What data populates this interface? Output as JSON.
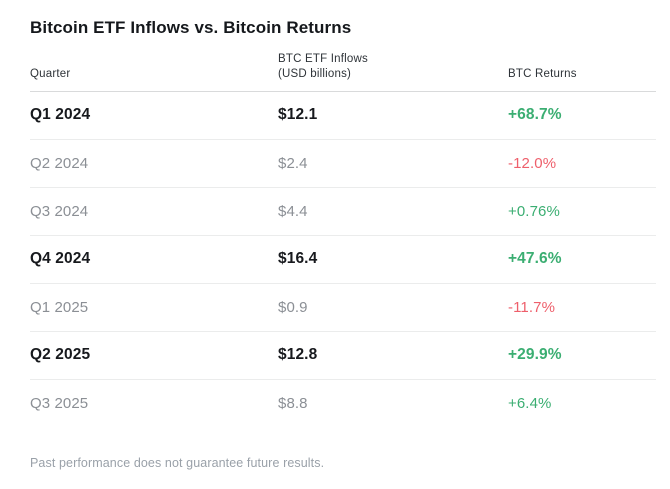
{
  "header": {
    "title": "Bitcoin ETF Inflows vs. Bitcoin Returns"
  },
  "table": {
    "columns": [
      {
        "label": "Quarter",
        "sub": ""
      },
      {
        "label": "BTC ETF Inflows",
        "sub": "(USD billions)"
      },
      {
        "label": "BTC Returns",
        "sub": ""
      }
    ]
  },
  "chart_data": {
    "type": "table",
    "title": "Bitcoin ETF Inflows vs. Bitcoin Returns",
    "columns": [
      "Quarter",
      "BTC ETF Inflows (USD billions)",
      "BTC Returns"
    ],
    "rows": [
      {
        "quarter": "Q1 2024",
        "inflows_label": "$12.1",
        "inflows_usd_billions": 12.1,
        "return_label": "+68.7%",
        "return_pct": 68.7,
        "emphasized": true
      },
      {
        "quarter": "Q2 2024",
        "inflows_label": "$2.4",
        "inflows_usd_billions": 2.4,
        "return_label": "-12.0%",
        "return_pct": -12.0,
        "emphasized": false
      },
      {
        "quarter": "Q3 2024",
        "inflows_label": "$4.4",
        "inflows_usd_billions": 4.4,
        "return_label": "+0.76%",
        "return_pct": 0.76,
        "emphasized": false
      },
      {
        "quarter": "Q4 2024",
        "inflows_label": "$16.4",
        "inflows_usd_billions": 16.4,
        "return_label": "+47.6%",
        "return_pct": 47.6,
        "emphasized": true
      },
      {
        "quarter": "Q1 2025",
        "inflows_label": "$0.9",
        "inflows_usd_billions": 0.9,
        "return_label": "-11.7%",
        "return_pct": -11.7,
        "emphasized": false
      },
      {
        "quarter": "Q2 2025",
        "inflows_label": "$12.8",
        "inflows_usd_billions": 12.8,
        "return_label": "+29.9%",
        "return_pct": 29.9,
        "emphasized": true
      },
      {
        "quarter": "Q3 2025",
        "inflows_label": "$8.8",
        "inflows_usd_billions": 8.8,
        "return_label": "+6.4%",
        "return_pct": 6.4,
        "emphasized": false
      }
    ]
  },
  "footer": {
    "disclaimer": "Past performance does not guarantee future results."
  },
  "colors": {
    "positive": "#3bae72",
    "negative": "#ee5f6b",
    "emphasis_text": "#17191d",
    "muted_text": "#8b8f95"
  }
}
